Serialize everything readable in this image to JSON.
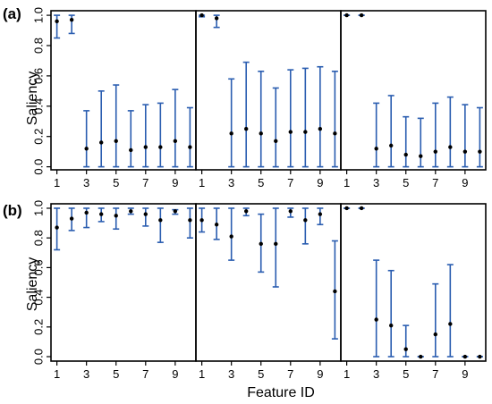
{
  "colors": {
    "errorbar": "#2a5db0",
    "point": "#000000",
    "frame": "#000000"
  },
  "xlabel": "Feature ID",
  "ylabel": "Saliency",
  "x_ticks": [
    1,
    3,
    5,
    7,
    9
  ],
  "y_ticks": [
    "0.0",
    "0.2",
    "0.4",
    "0.6",
    "0.8",
    "1.0"
  ],
  "chart_data": [
    {
      "type": "scatter",
      "row_label": "(a)",
      "panel": 1,
      "x": [
        1,
        2,
        3,
        4,
        5,
        6,
        7,
        8,
        9,
        10
      ],
      "y": [
        0.96,
        0.97,
        0.12,
        0.16,
        0.17,
        0.11,
        0.13,
        0.13,
        0.17,
        0.13
      ],
      "ylow": [
        0.85,
        0.88,
        0.0,
        0.0,
        0.0,
        0.0,
        0.0,
        0.0,
        0.0,
        0.0
      ],
      "yhigh": [
        1.0,
        1.0,
        0.37,
        0.5,
        0.54,
        0.37,
        0.41,
        0.42,
        0.51,
        0.39
      ],
      "xlim": [
        0.6,
        10.4
      ],
      "ylim": [
        -0.02,
        1.03
      ]
    },
    {
      "type": "scatter",
      "row_label": "",
      "panel": 2,
      "x": [
        1,
        2,
        3,
        4,
        5,
        6,
        7,
        8,
        9,
        10
      ],
      "y": [
        1.0,
        0.98,
        0.22,
        0.25,
        0.22,
        0.17,
        0.23,
        0.23,
        0.25,
        0.22
      ],
      "ylow": [
        0.99,
        0.92,
        0.0,
        0.0,
        0.0,
        0.0,
        0.0,
        0.0,
        0.0,
        0.0
      ],
      "yhigh": [
        1.0,
        1.0,
        0.58,
        0.69,
        0.63,
        0.52,
        0.64,
        0.65,
        0.66,
        0.63
      ],
      "xlim": [
        0.6,
        10.4
      ],
      "ylim": [
        -0.02,
        1.03
      ]
    },
    {
      "type": "scatter",
      "row_label": "",
      "panel": 3,
      "x": [
        1,
        2,
        3,
        4,
        5,
        6,
        7,
        8,
        9,
        10
      ],
      "y": [
        1.0,
        1.0,
        0.12,
        0.14,
        0.08,
        0.07,
        0.1,
        0.13,
        0.1,
        0.1
      ],
      "ylow": [
        1.0,
        1.0,
        0.0,
        0.0,
        0.0,
        0.0,
        0.0,
        0.0,
        0.0,
        0.0
      ],
      "yhigh": [
        1.0,
        1.0,
        0.42,
        0.47,
        0.33,
        0.32,
        0.42,
        0.46,
        0.41,
        0.39
      ],
      "xlim": [
        0.6,
        10.4
      ],
      "ylim": [
        -0.02,
        1.03
      ]
    },
    {
      "type": "scatter",
      "row_label": "(b)",
      "panel": 4,
      "x": [
        1,
        2,
        3,
        4,
        5,
        6,
        7,
        8,
        9,
        10
      ],
      "y": [
        0.87,
        0.93,
        0.97,
        0.96,
        0.95,
        0.98,
        0.96,
        0.92,
        0.98,
        0.92
      ],
      "ylow": [
        0.72,
        0.85,
        0.87,
        0.91,
        0.86,
        0.96,
        0.88,
        0.77,
        0.96,
        0.8
      ],
      "yhigh": [
        1.0,
        1.0,
        1.0,
        1.0,
        1.0,
        1.0,
        1.0,
        1.0,
        0.99,
        1.0
      ],
      "xlim": [
        0.6,
        10.4
      ],
      "ylim": [
        -0.03,
        1.03
      ]
    },
    {
      "type": "scatter",
      "row_label": "",
      "panel": 5,
      "x": [
        1,
        2,
        3,
        4,
        5,
        6,
        7,
        8,
        9,
        10
      ],
      "y": [
        0.92,
        0.89,
        0.81,
        0.98,
        0.76,
        0.76,
        0.98,
        0.92,
        0.96,
        0.44
      ],
      "ylow": [
        0.84,
        0.79,
        0.65,
        0.95,
        0.57,
        0.47,
        0.94,
        0.76,
        0.89,
        0.12
      ],
      "yhigh": [
        1.0,
        1.0,
        1.0,
        1.0,
        0.96,
        1.0,
        1.0,
        1.0,
        1.0,
        0.78
      ],
      "xlim": [
        0.6,
        10.4
      ],
      "ylim": [
        -0.03,
        1.03
      ]
    },
    {
      "type": "scatter",
      "row_label": "",
      "panel": 6,
      "x": [
        1,
        2,
        3,
        4,
        5,
        6,
        7,
        8,
        9,
        10
      ],
      "y": [
        1.0,
        1.0,
        0.25,
        0.21,
        0.05,
        0.0,
        0.15,
        0.22,
        0.0,
        0.0
      ],
      "ylow": [
        1.0,
        1.0,
        0.0,
        0.0,
        0.0,
        0.0,
        0.0,
        0.0,
        0.0,
        0.0
      ],
      "yhigh": [
        1.0,
        1.0,
        0.65,
        0.58,
        0.21,
        0.0,
        0.49,
        0.62,
        0.0,
        0.0
      ],
      "xlim": [
        0.6,
        10.4
      ],
      "ylim": [
        -0.03,
        1.03
      ]
    }
  ]
}
